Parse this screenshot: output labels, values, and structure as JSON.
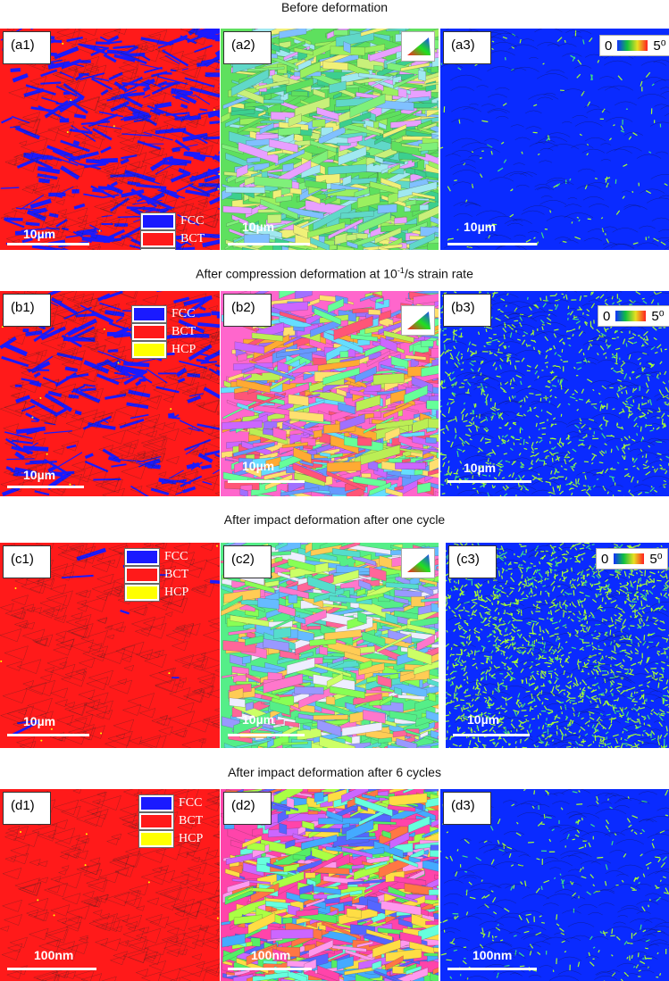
{
  "rows": [
    {
      "title": "Before deformation",
      "panels": [
        {
          "label": "(a1)",
          "scale": "10µm"
        },
        {
          "label": "(a2)",
          "scale": "10µm"
        },
        {
          "label": "(a3)",
          "scale": "10µm"
        }
      ]
    },
    {
      "title": "After compression deformation at 10-1/s strain rate",
      "panels": [
        {
          "label": "(b1)",
          "scale": "10µm"
        },
        {
          "label": "(b2)",
          "scale": "10µm"
        },
        {
          "label": "(b3)",
          "scale": "10µm"
        }
      ]
    },
    {
      "title": "After impact deformation after one cycle",
      "panels": [
        {
          "label": "(c1)",
          "scale": "10µm"
        },
        {
          "label": "(c2)",
          "scale": "10µm"
        },
        {
          "label": "(c3)",
          "scale": "10µm"
        }
      ]
    },
    {
      "title": "After impact deformation after 6 cycles",
      "panels": [
        {
          "label": "(d1)",
          "scale": "100nm"
        },
        {
          "label": "(d2)",
          "scale": "100nm"
        },
        {
          "label": "(d3)",
          "scale": "100nm"
        }
      ]
    }
  ],
  "phase_legend": [
    {
      "name": "FCC",
      "color": "#1a1aff"
    },
    {
      "name": "BCT",
      "color": "#ff1a1a"
    },
    {
      "name": "HCP",
      "color": "#ffff00"
    }
  ],
  "kam_legend": {
    "min": "0",
    "max": "5⁰"
  },
  "colors": {
    "fcc": "#1a1aff",
    "bct": "#ff1a1a",
    "hcp": "#ffff00",
    "kam_low": "#0a2bff",
    "kam_high": "#a8ff30"
  }
}
